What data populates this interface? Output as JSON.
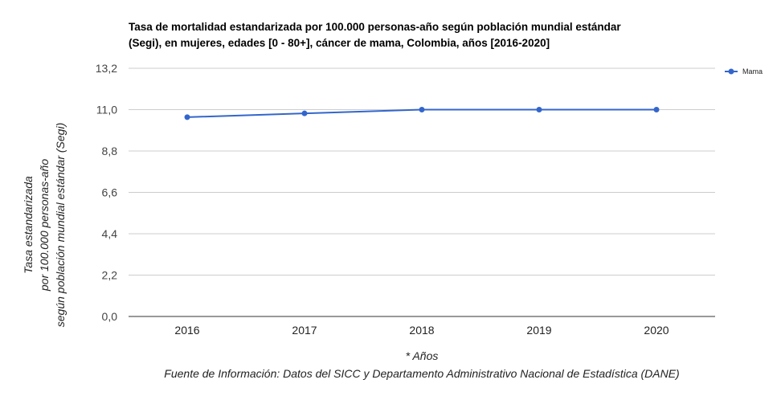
{
  "chart_data": {
    "type": "line",
    "title_lines": [
      "Tasa de mortalidad estandarizada por 100.000 personas-año según población mundial estándar",
      "(Segi), en mujeres, edades [0 - 80+], cáncer de mama, Colombia, años [2016-2020]"
    ],
    "ylabel_lines": [
      "Tasa estandarizada",
      "por 100.000 personas-año",
      "según población mundial estándar (Segi)"
    ],
    "xlabel": "* Años",
    "source": "Fuente de Información: Datos del SICC y Departamento Administrativo Nacional de Estadística (DANE)",
    "categories": [
      "2016",
      "2017",
      "2018",
      "2019",
      "2020"
    ],
    "yticks": [
      "0,0",
      "2,2",
      "4,4",
      "6,6",
      "8,8",
      "11,0",
      "13,2"
    ],
    "yticks_values": [
      0,
      2.2,
      4.4,
      6.6,
      8.8,
      11.0,
      13.2
    ],
    "ylim": [
      0,
      13.2
    ],
    "grid": true,
    "legend_position": "top-right",
    "series": [
      {
        "name": "Mama",
        "color": "#3366cc",
        "values": [
          10.6,
          10.8,
          11.0,
          11.0,
          11.0
        ]
      }
    ]
  }
}
